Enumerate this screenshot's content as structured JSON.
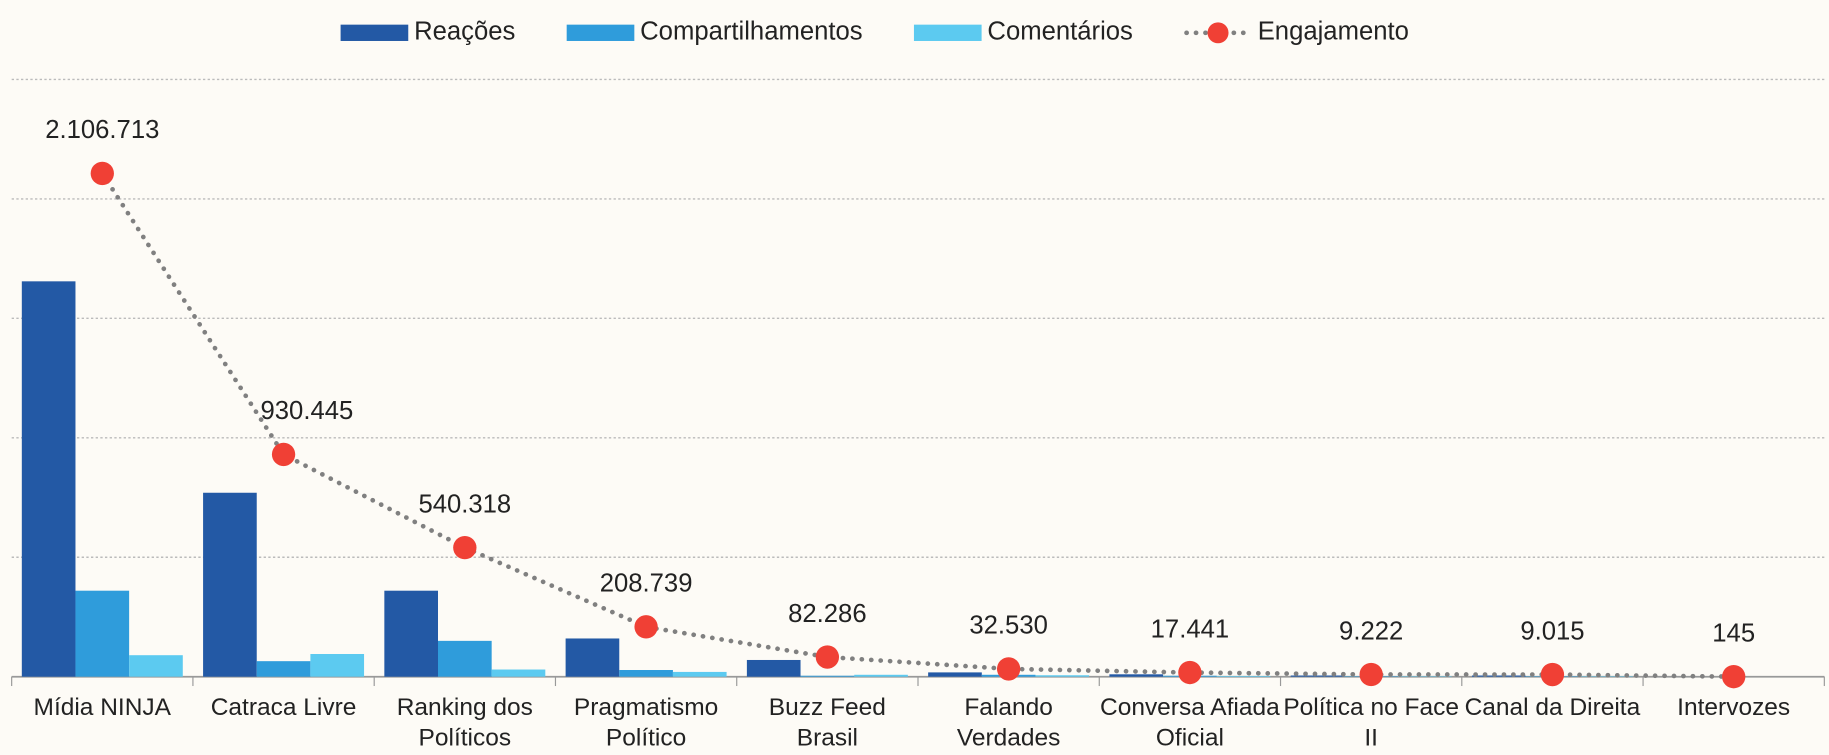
{
  "chart_data": {
    "type": "bar-line",
    "categories": [
      "Mídia NINJA",
      "Catraca Livre",
      "Ranking dos Políticos",
      "Pragmatismo Político",
      "Buzz Feed Brasil",
      "Falando Verdades",
      "Conversa Afiada Oficial",
      "Política no Face II",
      "Canal da Direita",
      "Intervozes"
    ],
    "series": [
      {
        "name": "Reações",
        "type": "bar",
        "color": "#2359a5",
        "values": [
          1655000,
          770000,
          360000,
          160000,
          70000,
          18000,
          10000,
          5000,
          5000,
          100
        ]
      },
      {
        "name": "Compartilhamentos",
        "type": "bar",
        "color": "#2f9cdb",
        "values": [
          360000,
          65000,
          150000,
          28000,
          4000,
          8000,
          4000,
          2000,
          2000,
          20
        ]
      },
      {
        "name": "Comentários",
        "type": "bar",
        "color": "#5ccaf0",
        "values": [
          90000,
          95000,
          30000,
          20000,
          8000,
          6000,
          3000,
          2000,
          2000,
          25
        ]
      },
      {
        "name": "Engajamento",
        "type": "line",
        "color": "#808080",
        "marker_color": "#f04035",
        "values": [
          2106713,
          930445,
          540318,
          208739,
          82286,
          32530,
          17441,
          9222,
          9015,
          145
        ],
        "value_labels": [
          "2.106.713",
          "930.445",
          "540.318",
          "208.739",
          "82.286",
          "32.530",
          "17.441",
          "9.222",
          "9.015",
          "145"
        ]
      }
    ],
    "ylim": [
      0,
      2500000
    ],
    "yticks": [
      0,
      500000,
      1000000,
      1500000,
      2000000,
      2500000
    ],
    "grid": true,
    "legend": "top"
  }
}
